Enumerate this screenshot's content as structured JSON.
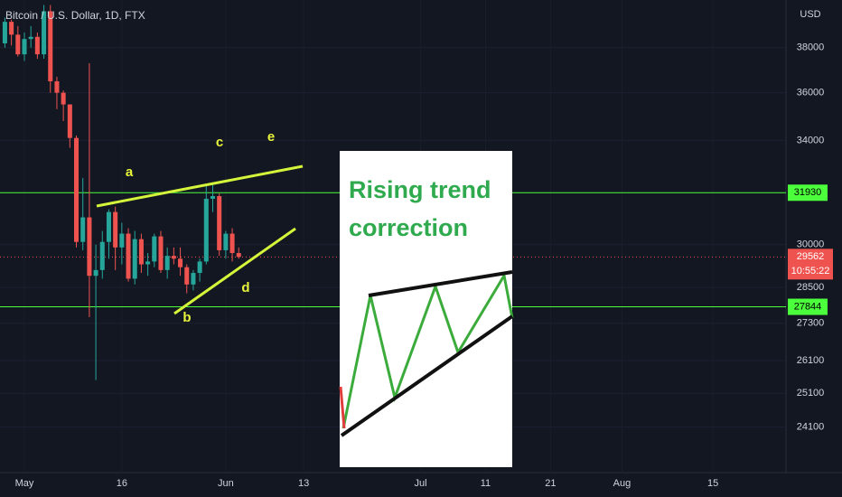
{
  "chart_data": {
    "type": "candlestick",
    "title": "Bitcoin / U.S. Dollar, 1D, FTX",
    "currency": "USD",
    "log_scale": true,
    "up_color": "#26a69a",
    "down_color": "#ef5350",
    "x": [
      -3,
      -2,
      -1,
      0,
      1,
      2,
      3,
      4,
      5,
      6,
      7,
      8,
      9,
      10,
      11,
      12,
      13,
      14,
      15,
      16,
      17,
      18,
      19,
      20,
      21,
      22,
      23,
      24,
      25,
      26,
      27,
      28,
      29,
      30,
      31,
      32,
      33
    ],
    "open": [
      38200,
      39200,
      38600,
      37700,
      38400,
      38500,
      37700,
      39700,
      36500,
      36000,
      35500,
      34100,
      30100,
      31000,
      28900,
      29100,
      30100,
      31200,
      29900,
      30400,
      28800,
      30200,
      29300,
      29400,
      30300,
      29100,
      29600,
      29500,
      29200,
      28600,
      29000,
      29400,
      31700,
      31800,
      29800,
      30400,
      29700
    ],
    "high": [
      39400,
      39300,
      39000,
      38700,
      39000,
      38700,
      40000,
      40000,
      36700,
      36100,
      35500,
      34200,
      32500,
      37300,
      30000,
      30500,
      31300,
      31400,
      30800,
      30600,
      30500,
      30400,
      29700,
      30400,
      30500,
      29900,
      29900,
      29900,
      29300,
      29100,
      29500,
      32200,
      32300,
      31900,
      30500,
      30600,
      29900
    ],
    "low": [
      38000,
      38100,
      37600,
      37400,
      38000,
      37500,
      37500,
      36000,
      35300,
      34800,
      33700,
      29900,
      29800,
      27500,
      25500,
      28800,
      29500,
      29100,
      29300,
      28700,
      28600,
      29000,
      28900,
      29200,
      29000,
      28800,
      29300,
      28900,
      28300,
      28400,
      28700,
      29300,
      31200,
      29600,
      29500,
      29400,
      29500
    ],
    "close": [
      39200,
      38600,
      37700,
      38400,
      38500,
      37700,
      39700,
      36500,
      36000,
      35500,
      34100,
      30100,
      31000,
      28900,
      29100,
      30100,
      31200,
      29900,
      30400,
      28800,
      30200,
      29300,
      29400,
      30300,
      29100,
      29600,
      29500,
      29200,
      28600,
      29000,
      29400,
      31700,
      31800,
      29800,
      30400,
      29700,
      29562
    ],
    "xlim": [
      -3.755,
      117.25
    ],
    "xticks": [
      {
        "value": 0,
        "label": "May"
      },
      {
        "value": 15,
        "label": "16"
      },
      {
        "value": 31,
        "label": "Jun"
      },
      {
        "value": 43,
        "label": "13"
      },
      {
        "value": 61,
        "label": "Jul"
      },
      {
        "value": 71,
        "label": "11"
      },
      {
        "value": 81,
        "label": "21"
      },
      {
        "value": 92,
        "label": "Aug"
      },
      {
        "value": 106,
        "label": "15"
      }
    ],
    "ylim": [
      22820,
      40240
    ],
    "yticks": [
      24100,
      25100,
      26100,
      27300,
      28500,
      30000,
      34000,
      36000,
      38000
    ],
    "level_lines": [
      31930,
      27844
    ],
    "level_color": "#4cff3c",
    "last_price": 29562,
    "countdown": "10:55:22",
    "annotations": [
      "a",
      "b",
      "c",
      "d",
      "e"
    ],
    "inset_text": [
      "Rising trend",
      "correction"
    ]
  }
}
